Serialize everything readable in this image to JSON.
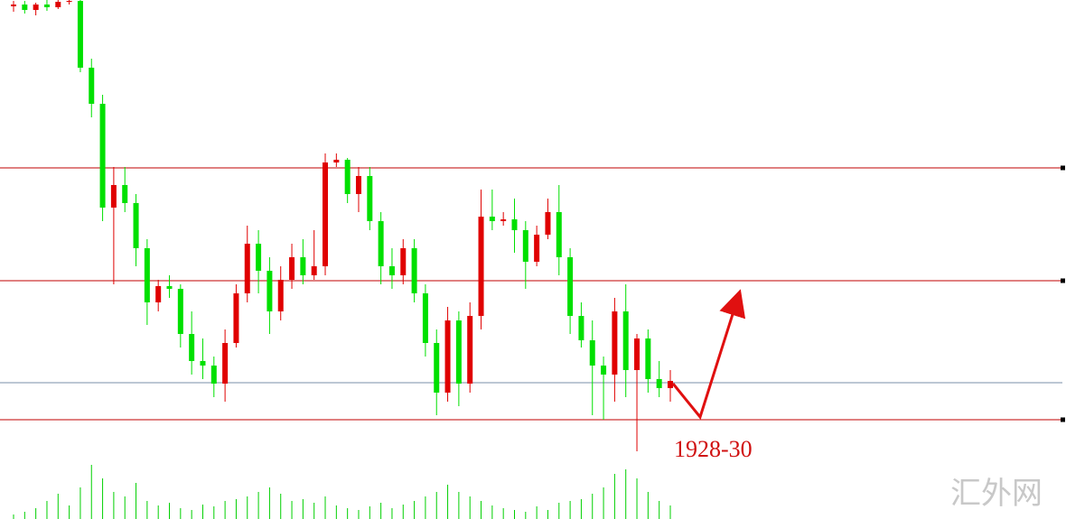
{
  "chart_data": {
    "type": "candlestick",
    "open": [
      1974.8,
      1975.0,
      1974.4,
      1975.0,
      1974.7,
      1975.3,
      1975.4,
      1968.0,
      1964.0,
      1952.5,
      1955.0,
      1953.0,
      1948.0,
      1942.0,
      1943.8,
      1943.5,
      1938.5,
      1935.5,
      1935.0,
      1933.0,
      1937.5,
      1943.0,
      1948.5,
      1945.5,
      1941.0,
      1944.5,
      1947.0,
      1945.0,
      1946.0,
      1957.5,
      1957.8,
      1954.0,
      1956.0,
      1951.0,
      1946.0,
      1945.0,
      1948.0,
      1943.0,
      1937.5,
      1932.0,
      1940.0,
      1933.0,
      1940.5,
      1951.5,
      1951.0,
      1951.2,
      1950.0,
      1946.5,
      1949.5,
      1952.0,
      1947.0,
      1940.5,
      1937.8,
      1935.0,
      1934.0,
      1941.0,
      1934.5,
      1938.0,
      1933.5,
      1932.5
    ],
    "high": [
      1975.4,
      1975.4,
      1975.2,
      1975.5,
      1975.5,
      1975.5,
      1975.5,
      1969.0,
      1965.0,
      1957.0,
      1957.0,
      1954.0,
      1949.0,
      1944.5,
      1945.0,
      1944.0,
      1941.0,
      1938.0,
      1936.0,
      1939.0,
      1944.0,
      1950.5,
      1950.0,
      1947.0,
      1946.0,
      1948.5,
      1949.0,
      1950.0,
      1958.5,
      1958.5,
      1958.0,
      1957.0,
      1957.0,
      1952.0,
      1948.0,
      1949.0,
      1949.0,
      1944.0,
      1939.0,
      1941.5,
      1941.0,
      1942.0,
      1954.5,
      1954.5,
      1952.0,
      1953.5,
      1951.0,
      1950.5,
      1953.5,
      1955.0,
      1948.0,
      1942.0,
      1940.0,
      1936.0,
      1942.5,
      1944.0,
      1938.5,
      1939.0,
      1935.5,
      1934.5
    ],
    "low": [
      1974.2,
      1974.0,
      1973.8,
      1974.3,
      1974.5,
      1975.0,
      1967.5,
      1962.5,
      1951.0,
      1944.0,
      1952.0,
      1946.0,
      1939.5,
      1941.0,
      1942.5,
      1937.0,
      1934.0,
      1933.5,
      1931.5,
      1931.0,
      1937.0,
      1942.0,
      1943.0,
      1938.5,
      1940.0,
      1943.5,
      1944.0,
      1944.5,
      1945.0,
      1957.0,
      1953.0,
      1952.0,
      1950.0,
      1944.0,
      1943.5,
      1944.0,
      1942.0,
      1936.0,
      1929.5,
      1931.0,
      1930.5,
      1932.0,
      1939.0,
      1950.0,
      1950.5,
      1947.5,
      1943.5,
      1946.0,
      1949.0,
      1945.0,
      1938.5,
      1937.0,
      1929.5,
      1929.0,
      1931.0,
      1931.5,
      1925.5,
      1932.0,
      1931.5,
      1931.0
    ],
    "close": [
      1975.0,
      1974.4,
      1975.0,
      1974.7,
      1975.3,
      1975.4,
      1968.0,
      1964.0,
      1952.5,
      1955.0,
      1953.0,
      1948.0,
      1942.0,
      1943.8,
      1943.5,
      1938.5,
      1935.5,
      1935.0,
      1933.0,
      1937.5,
      1943.0,
      1948.5,
      1945.5,
      1941.0,
      1944.5,
      1947.0,
      1945.0,
      1946.0,
      1957.5,
      1957.8,
      1954.0,
      1956.0,
      1951.0,
      1946.0,
      1945.0,
      1948.0,
      1943.0,
      1937.5,
      1932.0,
      1940.0,
      1933.0,
      1940.5,
      1951.5,
      1951.0,
      1951.2,
      1950.0,
      1946.5,
      1949.5,
      1952.0,
      1947.0,
      1940.5,
      1937.8,
      1935.0,
      1934.0,
      1941.0,
      1934.5,
      1938.0,
      1933.5,
      1932.5,
      1933.3
    ],
    "volume": [
      5,
      8,
      12,
      20,
      28,
      15,
      35,
      60,
      45,
      30,
      25,
      40,
      20,
      15,
      18,
      12,
      10,
      16,
      14,
      20,
      22,
      25,
      30,
      35,
      28,
      20,
      22,
      18,
      25,
      15,
      12,
      10,
      14,
      18,
      12,
      16,
      20,
      25,
      30,
      38,
      30,
      25,
      20,
      15,
      12,
      10,
      8,
      14,
      10,
      18,
      20,
      22,
      28,
      35,
      50,
      55,
      45,
      30,
      20,
      15
    ],
    "up_color": "#e00000",
    "down_color": "#00e000",
    "ylim": [
      1918,
      1975.5
    ],
    "levels": [
      {
        "value": 1956.9,
        "color": "#c00000"
      },
      {
        "value": 1944.4,
        "color": "#c00000"
      },
      {
        "value": 1933.1,
        "color": "#7a8fa8"
      },
      {
        "value": 1929.0,
        "color": "#c00000"
      }
    ],
    "annotation": "1928-30",
    "watermark": "汇外网"
  }
}
